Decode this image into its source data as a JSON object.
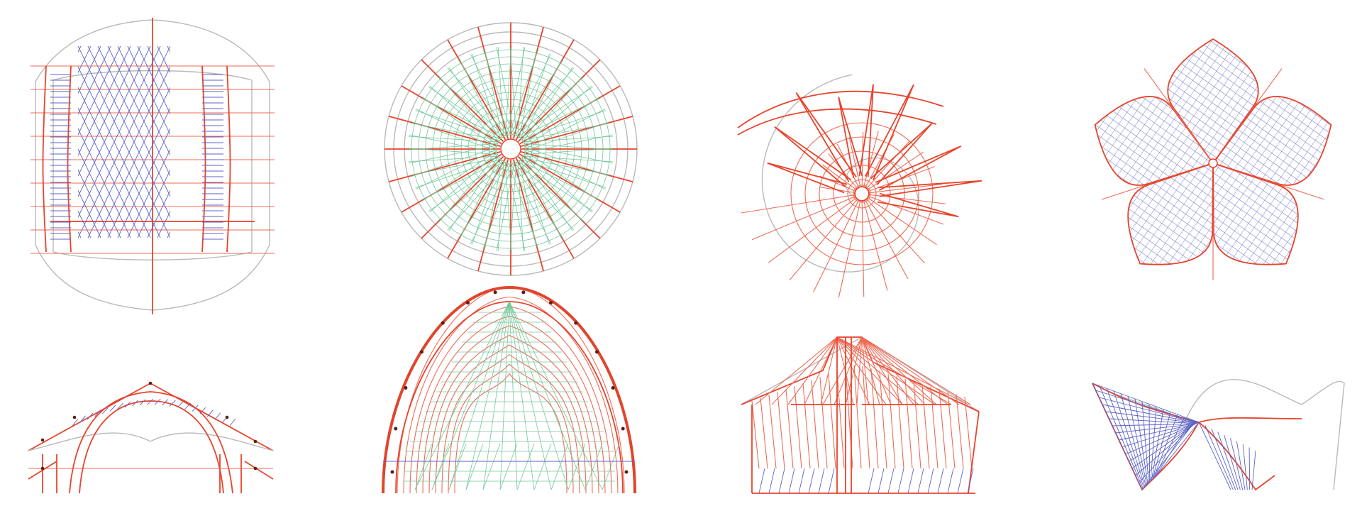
{
  "figure": {
    "background": "#ffffff",
    "colors": {
      "primary_structure": "#e8432b",
      "secondary_grid": "#5c63c7",
      "tertiary_grid": "#74c79a",
      "outline": "#b9b9b9",
      "nodes": "#5a1f16"
    },
    "panels": [
      {
        "id": "rect-grid-plan",
        "row": "top",
        "kind": "plan"
      },
      {
        "id": "radial-dome-plan",
        "row": "top",
        "kind": "plan"
      },
      {
        "id": "spiral-shell-plan",
        "row": "top",
        "kind": "plan"
      },
      {
        "id": "five-petal-plan",
        "row": "top",
        "kind": "plan"
      },
      {
        "id": "arch-truss-section",
        "row": "bottom",
        "kind": "section"
      },
      {
        "id": "dome-arch-section",
        "row": "bottom",
        "kind": "section"
      },
      {
        "id": "tent-frame-elevation",
        "row": "bottom",
        "kind": "elevation"
      },
      {
        "id": "saddle-shell-elevation",
        "row": "bottom",
        "kind": "elevation"
      }
    ]
  }
}
